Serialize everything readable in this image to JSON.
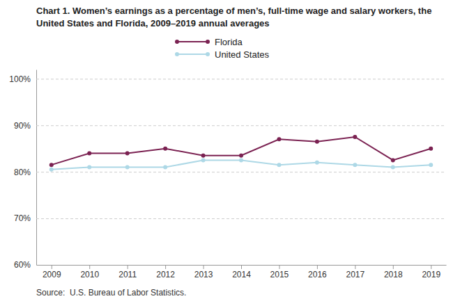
{
  "chart_data": {
    "type": "line",
    "title": "Chart 1. Women’s earnings as a percentage of men’s, full-time wage and salary workers, the United States and Florida, 2009–2019 annual averages",
    "source": "Source:  U.S. Bureau of Labor Statistics.",
    "x": [
      2009,
      2010,
      2011,
      2012,
      2013,
      2014,
      2015,
      2016,
      2017,
      2018,
      2019
    ],
    "series": [
      {
        "name": "Florida",
        "color": "#7B2252",
        "marker": "circle",
        "values": [
          81.5,
          84.0,
          84.0,
          85.0,
          83.5,
          83.5,
          87.0,
          86.5,
          87.5,
          82.5,
          85.0
        ]
      },
      {
        "name": "United States",
        "color": "#ADD8E6",
        "marker": "circle",
        "values": [
          80.5,
          81.0,
          81.0,
          81.0,
          82.5,
          82.5,
          81.5,
          82.0,
          81.5,
          81.0,
          81.5
        ]
      }
    ],
    "xlim": [
      2008.6,
      2019.4
    ],
    "xticks": [
      2009,
      2010,
      2011,
      2012,
      2013,
      2014,
      2015,
      2016,
      2017,
      2018,
      2019
    ],
    "ylim": [
      60,
      102
    ],
    "yticks": [
      {
        "value": 60,
        "label": "60%"
      },
      {
        "value": 70,
        "label": "70%"
      },
      {
        "value": 80,
        "label": "80%"
      },
      {
        "value": 90,
        "label": "90%"
      },
      {
        "value": 100,
        "label": "100%"
      }
    ],
    "grid": true,
    "legend": "top"
  }
}
